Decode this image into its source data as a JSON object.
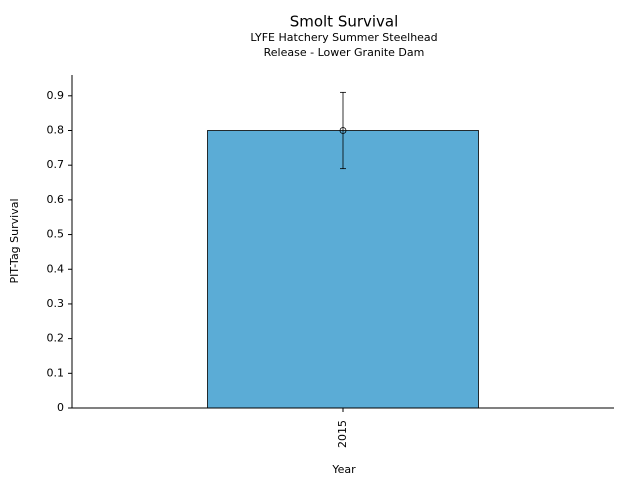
{
  "chart_data": {
    "type": "bar",
    "title": "Smolt Survival",
    "subtitle": [
      "LYFE Hatchery Summer Steelhead",
      "Release - Lower Granite Dam"
    ],
    "x_label": "Year",
    "y_label": "PIT-Tag Survival",
    "categories": [
      "2015"
    ],
    "values": [
      0.8
    ],
    "errors": [
      0.11
    ],
    "color": "#5bacd6",
    "ylim": [
      0,
      0.96
    ],
    "yticks": [
      0,
      0.1,
      0.2,
      0.3,
      0.4,
      0.5,
      0.6,
      0.7,
      0.8,
      0.9
    ],
    "grid": false
  }
}
